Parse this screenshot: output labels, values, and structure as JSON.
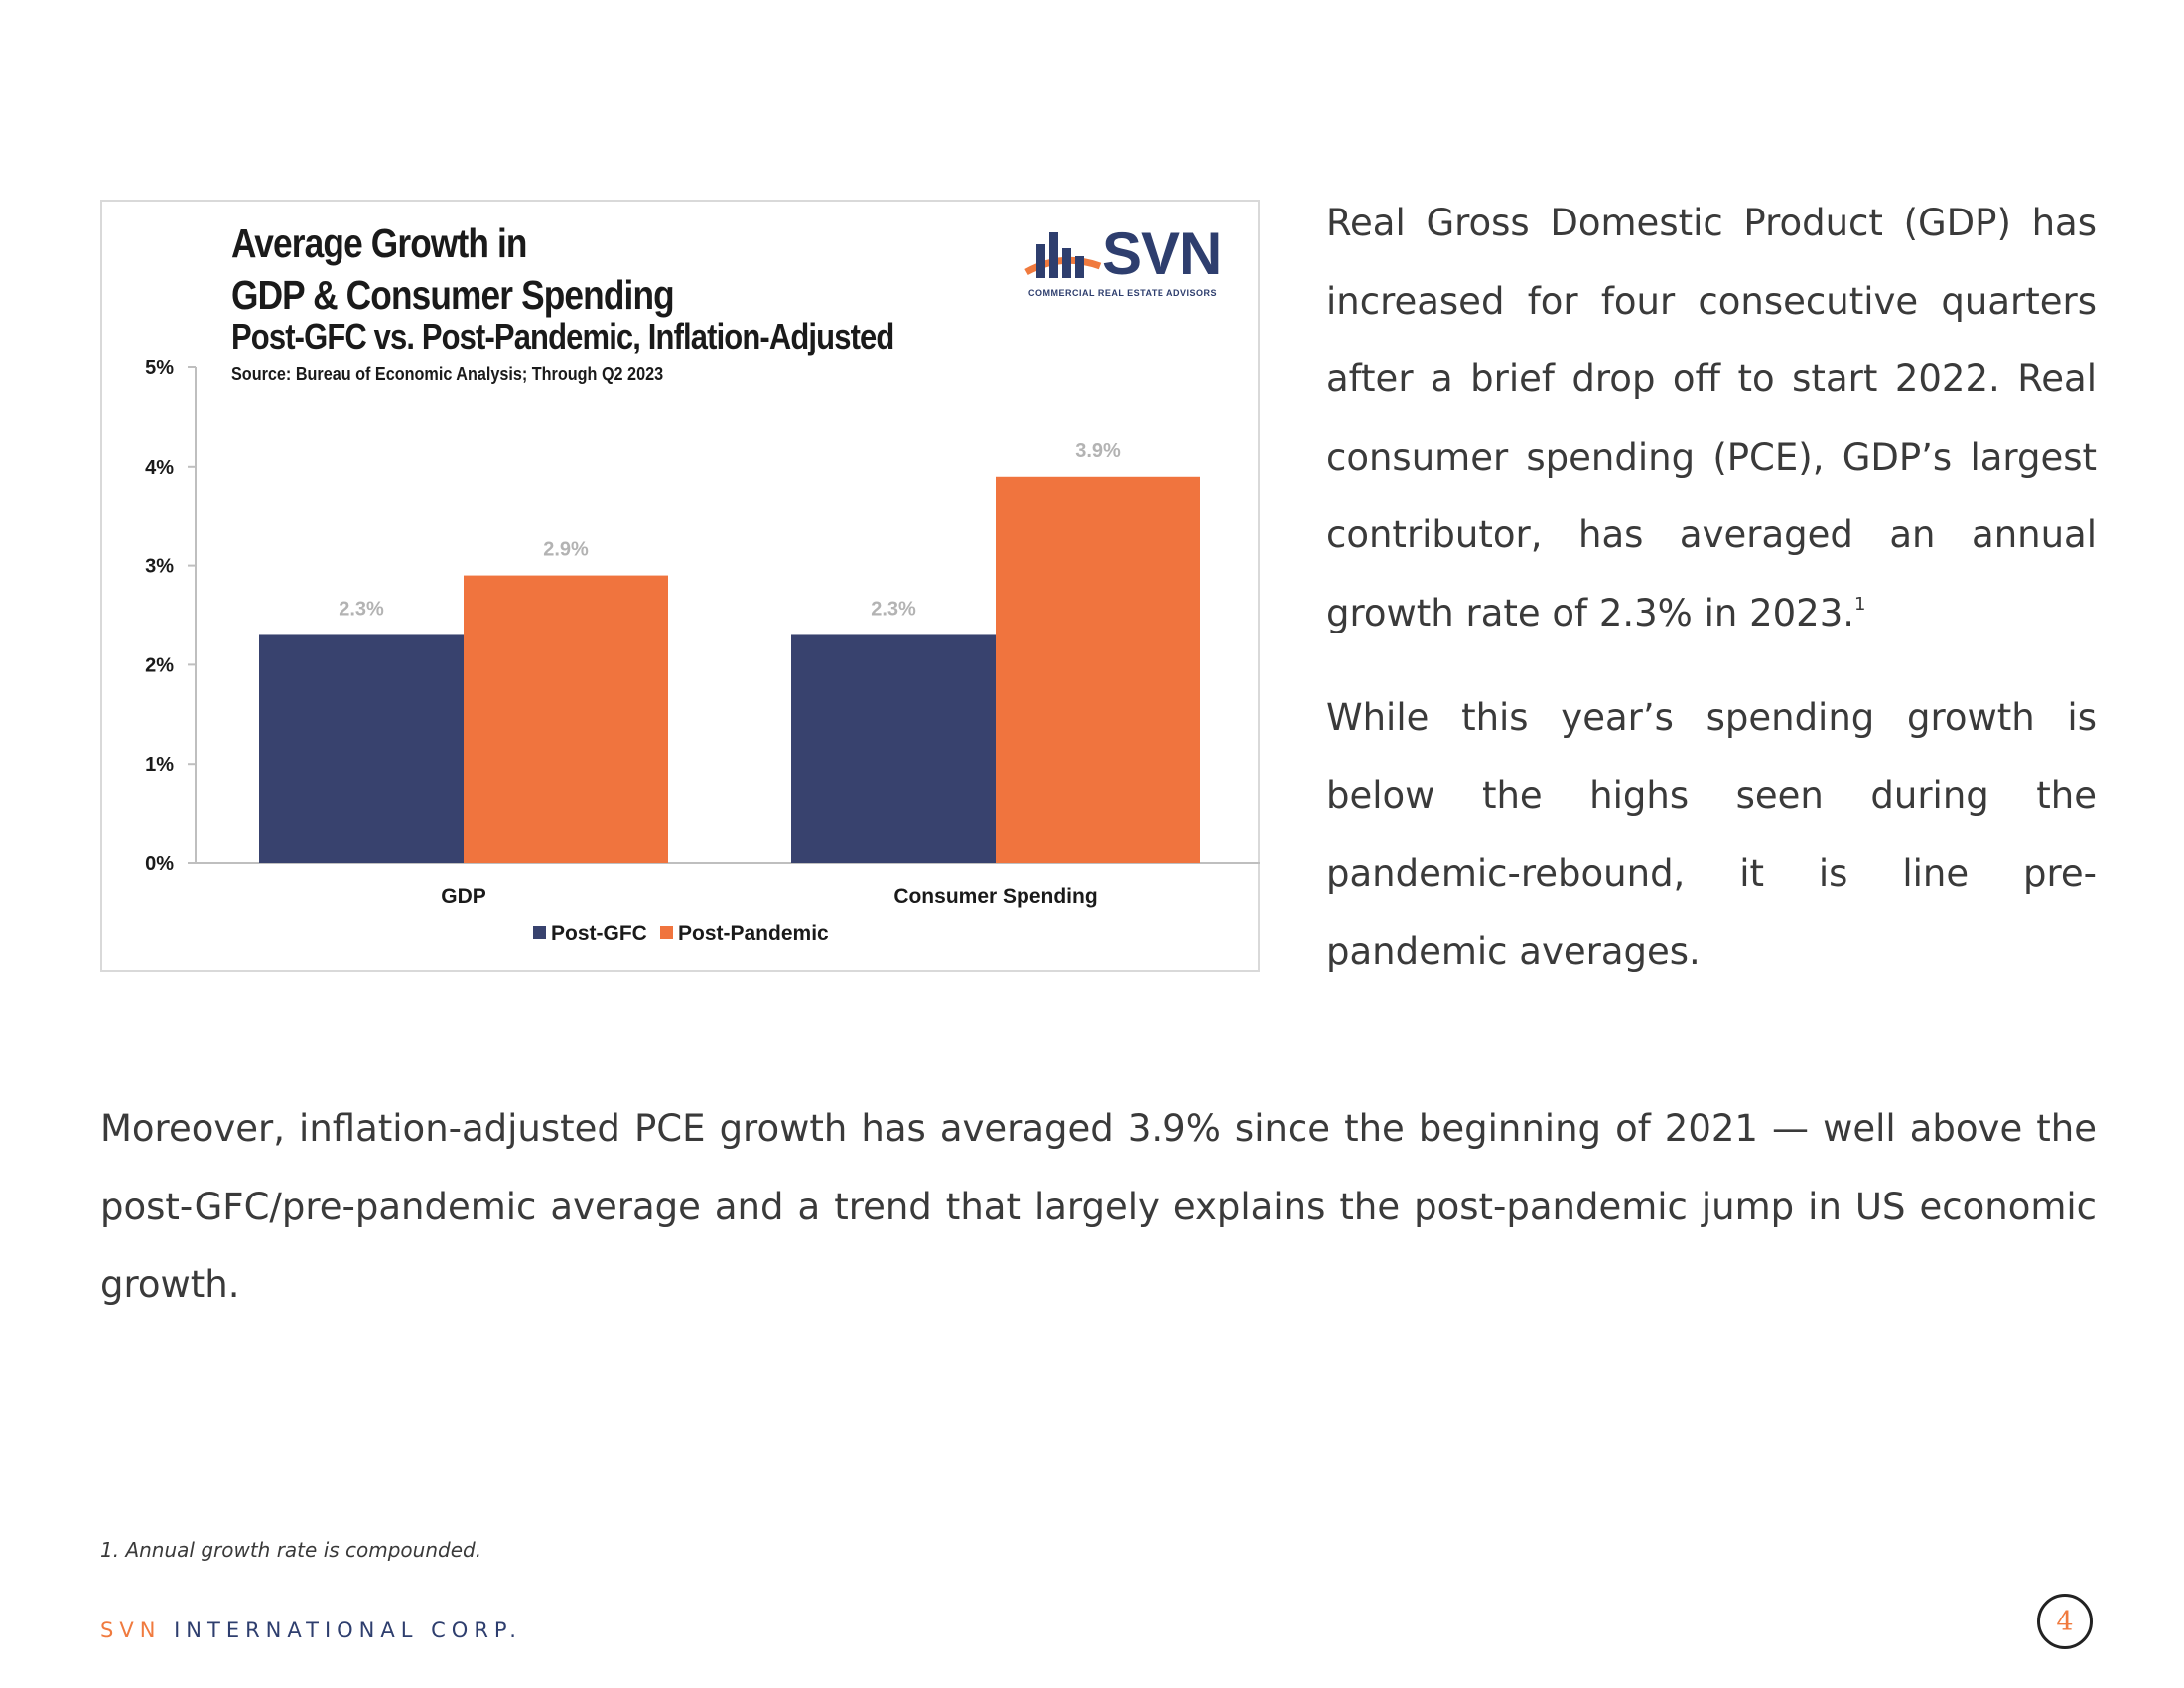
{
  "chart": {
    "title_line1": "Average Growth in",
    "title_line2": "GDP & Consumer Spending",
    "subtitle": "Post-GFC vs. Post-Pandemic, Inflation-Adjusted",
    "source": "Source: Bureau of Economic Analysis; Through Q2 2023"
  },
  "logo": {
    "text": "SVN",
    "tagline": "COMMERCIAL REAL ESTATE ADVISORS"
  },
  "chart_data": {
    "type": "bar",
    "title": "Average Growth in GDP & Consumer Spending",
    "subtitle": "Post-GFC vs. Post-Pandemic, Inflation-Adjusted",
    "categories": [
      "GDP",
      "Consumer Spending"
    ],
    "series": [
      {
        "name": "Post-GFC",
        "values": [
          2.3,
          2.3
        ],
        "labels": [
          "2.3%",
          "2.3%"
        ],
        "color": "#38426e"
      },
      {
        "name": "Post-Pandemic",
        "values": [
          2.9,
          3.9
        ],
        "labels": [
          "2.9%",
          "3.9%"
        ],
        "color": "#f0743e"
      }
    ],
    "yticks": [
      "0%",
      "1%",
      "2%",
      "3%",
      "4%",
      "5%"
    ],
    "ylim": [
      0,
      5
    ],
    "legend": "bottom-center",
    "grid": false
  },
  "text": {
    "para1": "Real Gross Domestic Product (GDP) has increased for four consecutive quarters after a brief drop off to start 2022. Real consumer spending (PCE), GDP’s largest contributor, has averaged an annual growth rate of 2.3% in 2023.",
    "para1_sup": "1",
    "para2": "While this year’s spending growth is below the highs seen during the pandemic-rebound, it is line pre-pandemic averages.",
    "para3": "Moreover, inflation-adjusted PCE growth has averaged 3.9% since the beginning of 2021 — well above the post-GFC/pre-pandemic average and a trend that largely explains the post-pandemic jump in US economic growth."
  },
  "footnote": "1. Annual growth rate is compounded.",
  "footer": {
    "brand_accent": "SVN",
    "brand_rest": "INTERNATIONAL CORP."
  },
  "page_number": "4"
}
